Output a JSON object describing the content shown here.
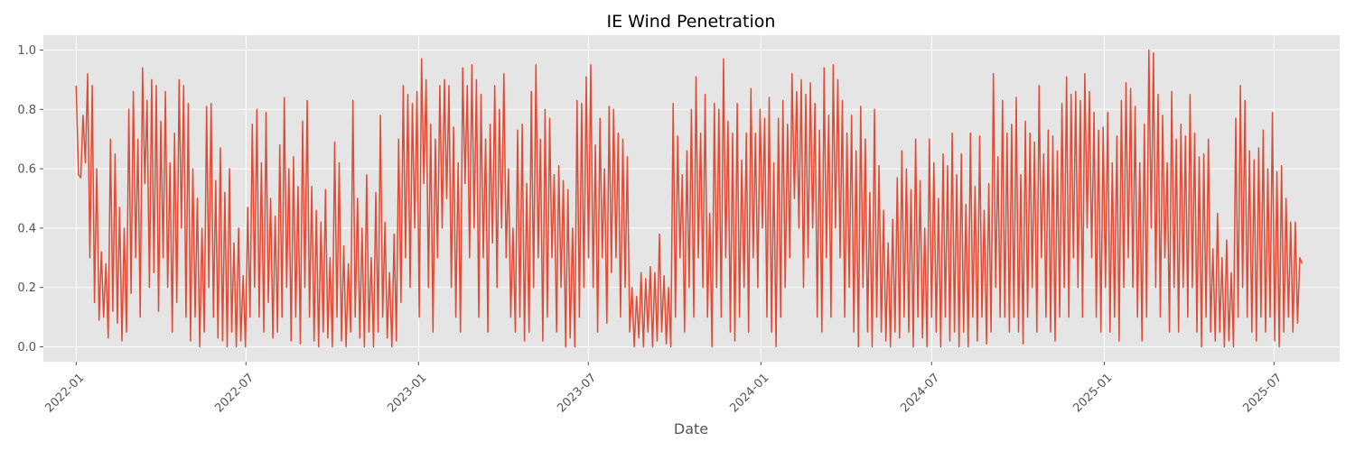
{
  "chart_data": {
    "type": "line",
    "title": "IE Wind Penetration",
    "xlabel": "Date",
    "ylabel": "",
    "xlim": [
      "2021-11-27",
      "2025-09-09"
    ],
    "ylim": [
      -0.05,
      1.05
    ],
    "x_ticks": [
      "2022-01",
      "2022-07",
      "2023-01",
      "2023-07",
      "2024-01",
      "2024-07",
      "2025-01",
      "2025-07"
    ],
    "y_ticks": [
      "0.0",
      "0.2",
      "0.4",
      "0.6",
      "0.8",
      "1.0"
    ],
    "grid": true,
    "legend": "none",
    "colors": {
      "line": "#E24A33",
      "plot_background": "#E5E5E5",
      "grid": "#FFFFFF"
    },
    "series": [
      {
        "x_start": "2022-01-01",
        "x_end": "2025-07-31",
        "frequency": "6h",
        "values": [
          0.88,
          0.58,
          0.57,
          0.78,
          0.62,
          0.92,
          0.3,
          0.88,
          0.15,
          0.6,
          0.09,
          0.32,
          0.1,
          0.28,
          0.03,
          0.7,
          0.12,
          0.65,
          0.08,
          0.47,
          0.02,
          0.4,
          0.05,
          0.8,
          0.18,
          0.86,
          0.3,
          0.7,
          0.1,
          0.94,
          0.55,
          0.83,
          0.2,
          0.9,
          0.25,
          0.88,
          0.12,
          0.76,
          0.3,
          0.86,
          0.2,
          0.62,
          0.05,
          0.72,
          0.15,
          0.9,
          0.4,
          0.88,
          0.1,
          0.82,
          0.02,
          0.6,
          0.1,
          0.5,
          0.0,
          0.4,
          0.05,
          0.81,
          0.2,
          0.82,
          0.1,
          0.56,
          0.03,
          0.67,
          0.02,
          0.52,
          0.0,
          0.6,
          0.05,
          0.35,
          0.0,
          0.4,
          0.02,
          0.24,
          0.0,
          0.47,
          0.1,
          0.75,
          0.2,
          0.8,
          0.1,
          0.62,
          0.05,
          0.79,
          0.15,
          0.5,
          0.03,
          0.44,
          0.05,
          0.68,
          0.1,
          0.84,
          0.2,
          0.6,
          0.02,
          0.64,
          0.1,
          0.54,
          0.01,
          0.76,
          0.2,
          0.83,
          0.1,
          0.54,
          0.02,
          0.46,
          0.0,
          0.42,
          0.05,
          0.53,
          0.03,
          0.3,
          0.0,
          0.69,
          0.1,
          0.62,
          0.02,
          0.34,
          0.0,
          0.28,
          0.05,
          0.83,
          0.1,
          0.5,
          0.03,
          0.4,
          0.0,
          0.58,
          0.05,
          0.3,
          0.0,
          0.52,
          0.05,
          0.78,
          0.1,
          0.42,
          0.03,
          0.25,
          0.0,
          0.38,
          0.02,
          0.7,
          0.15,
          0.88,
          0.3,
          0.85,
          0.2,
          0.82,
          0.4,
          0.86,
          0.1,
          0.97,
          0.55,
          0.9,
          0.2,
          0.75,
          0.05,
          0.7,
          0.3,
          0.88,
          0.4,
          0.9,
          0.5,
          0.88,
          0.2,
          0.74,
          0.1,
          0.62,
          0.05,
          0.94,
          0.55,
          0.88,
          0.3,
          0.95,
          0.4,
          0.9,
          0.1,
          0.85,
          0.3,
          0.7,
          0.05,
          0.75,
          0.35,
          0.88,
          0.2,
          0.8,
          0.4,
          0.92,
          0.3,
          0.6,
          0.1,
          0.4,
          0.05,
          0.73,
          0.1,
          0.75,
          0.02,
          0.55,
          0.05,
          0.86,
          0.2,
          0.95,
          0.3,
          0.7,
          0.02,
          0.8,
          0.1,
          0.77,
          0.3,
          0.58,
          0.05,
          0.61,
          0.2,
          0.56,
          0.0,
          0.53,
          0.03,
          0.4,
          0.0,
          0.83,
          0.1,
          0.82,
          0.2,
          0.91,
          0.3,
          0.95,
          0.2,
          0.68,
          0.05,
          0.77,
          0.3,
          0.6,
          0.08,
          0.81,
          0.25,
          0.8,
          0.3,
          0.72,
          0.1,
          0.7,
          0.2,
          0.64,
          0.05,
          0.2,
          0.0,
          0.17,
          0.03,
          0.25,
          0.0,
          0.23,
          0.05,
          0.27,
          0.0,
          0.25,
          0.02,
          0.38,
          0.05,
          0.24,
          0.01,
          0.2,
          0.0,
          0.82,
          0.1,
          0.71,
          0.3,
          0.58,
          0.05,
          0.66,
          0.2,
          0.8,
          0.1,
          0.91,
          0.3,
          0.72,
          0.2,
          0.85,
          0.1,
          0.45,
          0.0,
          0.82,
          0.2,
          0.8,
          0.1,
          0.97,
          0.3,
          0.76,
          0.05,
          0.72,
          0.02,
          0.82,
          0.1,
          0.63,
          0.2,
          0.72,
          0.05,
          0.87,
          0.3,
          0.72,
          0.2,
          0.8,
          0.4,
          0.77,
          0.1,
          0.84,
          0.05,
          0.62,
          0.0,
          0.77,
          0.1,
          0.83,
          0.2,
          0.75,
          0.3,
          0.92,
          0.5,
          0.86,
          0.4,
          0.9,
          0.2,
          0.85,
          0.3,
          0.89,
          0.4,
          0.82,
          0.1,
          0.73,
          0.05,
          0.94,
          0.3,
          0.78,
          0.1,
          0.95,
          0.4,
          0.9,
          0.3,
          0.83,
          0.1,
          0.72,
          0.2,
          0.78,
          0.05,
          0.66,
          0.0,
          0.81,
          0.2,
          0.7,
          0.05,
          0.52,
          0.0,
          0.8,
          0.1,
          0.61,
          0.05,
          0.46,
          0.02,
          0.35,
          0.0,
          0.43,
          0.05,
          0.57,
          0.03,
          0.66,
          0.1,
          0.6,
          0.05,
          0.53,
          0.0,
          0.7,
          0.1,
          0.56,
          0.03,
          0.4,
          0.0,
          0.7,
          0.1,
          0.62,
          0.05,
          0.5,
          0.0,
          0.65,
          0.1,
          0.61,
          0.02,
          0.72,
          0.05,
          0.58,
          0.0,
          0.65,
          0.05,
          0.48,
          0.0,
          0.72,
          0.1,
          0.54,
          0.02,
          0.71,
          0.1,
          0.46,
          0.01,
          0.55,
          0.05,
          0.92,
          0.2,
          0.64,
          0.1,
          0.83,
          0.1,
          0.72,
          0.05,
          0.75,
          0.1,
          0.84,
          0.05,
          0.58,
          0.01,
          0.76,
          0.1,
          0.72,
          0.2,
          0.69,
          0.05,
          0.88,
          0.3,
          0.65,
          0.1,
          0.73,
          0.05,
          0.71,
          0.02,
          0.66,
          0.1,
          0.82,
          0.2,
          0.91,
          0.1,
          0.85,
          0.3,
          0.86,
          0.2,
          0.83,
          0.1,
          0.92,
          0.4,
          0.86,
          0.3,
          0.79,
          0.1,
          0.73,
          0.05,
          0.74,
          0.2,
          0.79,
          0.05,
          0.62,
          0.1,
          0.71,
          0.02,
          0.83,
          0.2,
          0.89,
          0.3,
          0.87,
          0.2,
          0.81,
          0.1,
          0.62,
          0.02,
          0.75,
          0.1,
          1.0,
          0.4,
          0.99,
          0.2,
          0.85,
          0.1,
          0.78,
          0.3,
          0.62,
          0.05,
          0.86,
          0.2,
          0.7,
          0.05,
          0.75,
          0.2,
          0.71,
          0.1,
          0.85,
          0.2,
          0.72,
          0.05,
          0.64,
          0.0,
          0.65,
          0.1,
          0.7,
          0.05,
          0.33,
          0.02,
          0.45,
          0.05,
          0.3,
          0.0,
          0.36,
          0.02,
          0.25,
          0.0,
          0.77,
          0.1,
          0.88,
          0.2,
          0.83,
          0.1,
          0.66,
          0.05,
          0.63,
          0.02,
          0.67,
          0.1,
          0.73,
          0.05,
          0.6,
          0.1,
          0.79,
          0.02,
          0.59,
          0.0,
          0.61,
          0.05,
          0.5,
          0.1,
          0.42,
          0.05,
          0.42,
          0.08,
          0.3,
          0.28
        ]
      }
    ]
  }
}
